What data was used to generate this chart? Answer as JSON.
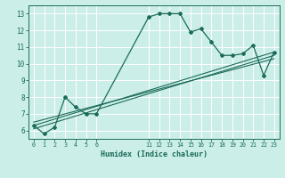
{
  "xlabel": "Humidex (Indice chaleur)",
  "bg_color": "#cceee8",
  "grid_color": "#ffffff",
  "line_color": "#1a6b5a",
  "xlim": [
    -0.5,
    23.5
  ],
  "ylim": [
    5.5,
    13.5
  ],
  "xticks": [
    0,
    1,
    2,
    3,
    4,
    5,
    6,
    11,
    12,
    13,
    14,
    15,
    16,
    17,
    18,
    19,
    20,
    21,
    22,
    23
  ],
  "yticks": [
    6,
    7,
    8,
    9,
    10,
    11,
    12,
    13
  ],
  "series1_x": [
    0,
    1,
    2,
    3,
    4,
    5,
    6,
    11,
    12,
    13,
    14,
    15,
    16,
    17,
    18,
    19,
    20,
    21,
    22,
    23
  ],
  "series1_y": [
    6.3,
    5.8,
    6.2,
    8.0,
    7.4,
    7.0,
    7.0,
    12.8,
    13.0,
    13.0,
    13.0,
    11.9,
    12.1,
    11.3,
    10.5,
    10.5,
    10.6,
    11.1,
    9.3,
    10.7
  ],
  "series2_x": [
    0,
    23
  ],
  "series2_y": [
    6.3,
    10.7
  ],
  "series3_x": [
    0,
    23
  ],
  "series3_y": [
    6.5,
    10.3
  ],
  "series4_x": [
    0,
    23
  ],
  "series4_y": [
    6.1,
    10.5
  ]
}
